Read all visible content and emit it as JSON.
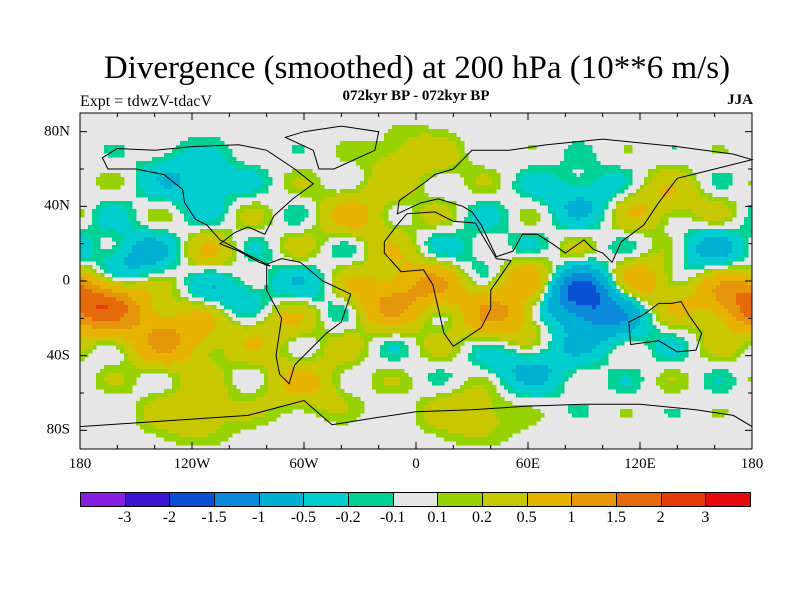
{
  "title": "Divergence (smoothed) at 200 hPa (10**6 m/s)",
  "subtitle": "072kyr BP - 072kyr BP",
  "left_label": "Expt = tdwzV-tdacV",
  "right_label": "JJA",
  "axes": {
    "y_ticks": [
      {
        "label": "80N",
        "lat": 80
      },
      {
        "label": "40N",
        "lat": 40
      },
      {
        "label": "0",
        "lat": 0
      },
      {
        "label": "40S",
        "lat": -40
      },
      {
        "label": "80S",
        "lat": -80
      }
    ],
    "x_ticks": [
      {
        "label": "180",
        "lon": -180
      },
      {
        "label": "120W",
        "lon": -120
      },
      {
        "label": "60W",
        "lon": -60
      },
      {
        "label": "0",
        "lon": 0
      },
      {
        "label": "60E",
        "lon": 60
      },
      {
        "label": "120E",
        "lon": 120
      },
      {
        "label": "180",
        "lon": 180
      }
    ],
    "lon_range": [
      -180,
      180
    ],
    "lat_range": [
      -90,
      90
    ]
  },
  "colorbar": {
    "colors": [
      "#8a1ee0",
      "#3c14d2",
      "#0a50d2",
      "#0a8ad8",
      "#00b0d2",
      "#00cdcd",
      "#00d296",
      "#e6e6e6",
      "#96d200",
      "#c8c800",
      "#e6b400",
      "#e6960a",
      "#e6690a",
      "#e63c0a",
      "#e60a0a"
    ],
    "labels": [
      "-3",
      "-2",
      "-1.5",
      "-1",
      "-0.5",
      "-0.2",
      "-0.1",
      "0.1",
      "0.2",
      "0.5",
      "1",
      "1.5",
      "2",
      "3"
    ]
  },
  "fields": [
    {
      "lon": -165,
      "lat": -12,
      "amp": 1.2
    },
    {
      "lon": -130,
      "lat": -30,
      "amp": 1.0
    },
    {
      "lon": -150,
      "lat": 10,
      "amp": -0.8
    },
    {
      "lon": -110,
      "lat": 10,
      "amp": 0.5
    },
    {
      "lon": -95,
      "lat": -5,
      "amp": -0.7
    },
    {
      "lon": -75,
      "lat": -20,
      "amp": 0.6
    },
    {
      "lon": -45,
      "lat": -10,
      "amp": -0.5
    },
    {
      "lon": -20,
      "lat": -10,
      "amp": 1.0
    },
    {
      "lon": 10,
      "lat": 0,
      "amp": 0.8
    },
    {
      "lon": 35,
      "lat": 10,
      "amp": -0.6
    },
    {
      "lon": 50,
      "lat": -20,
      "amp": 0.9
    },
    {
      "lon": 65,
      "lat": 0,
      "amp": 1.4
    },
    {
      "lon": 85,
      "lat": -5,
      "amp": -2.2
    },
    {
      "lon": 100,
      "lat": -20,
      "amp": -0.8
    },
    {
      "lon": 120,
      "lat": 0,
      "amp": 1.0
    },
    {
      "lon": 150,
      "lat": 15,
      "amp": -0.6
    },
    {
      "lon": 175,
      "lat": -10,
      "amp": 1.1
    },
    {
      "lon": -30,
      "lat": 35,
      "amp": 0.5
    },
    {
      "lon": 90,
      "lat": 45,
      "amp": -0.5
    },
    {
      "lon": 130,
      "lat": 40,
      "amp": 0.6
    },
    {
      "lon": -120,
      "lat": 55,
      "amp": -0.5
    },
    {
      "lon": 0,
      "lat": 65,
      "amp": 0.4
    },
    {
      "lon": -60,
      "lat": -55,
      "amp": 0.5
    },
    {
      "lon": 60,
      "lat": -45,
      "amp": -0.6
    },
    {
      "lon": -120,
      "lat": -70,
      "amp": 0.4
    },
    {
      "lon": 30,
      "lat": -70,
      "amp": 0.4
    }
  ]
}
